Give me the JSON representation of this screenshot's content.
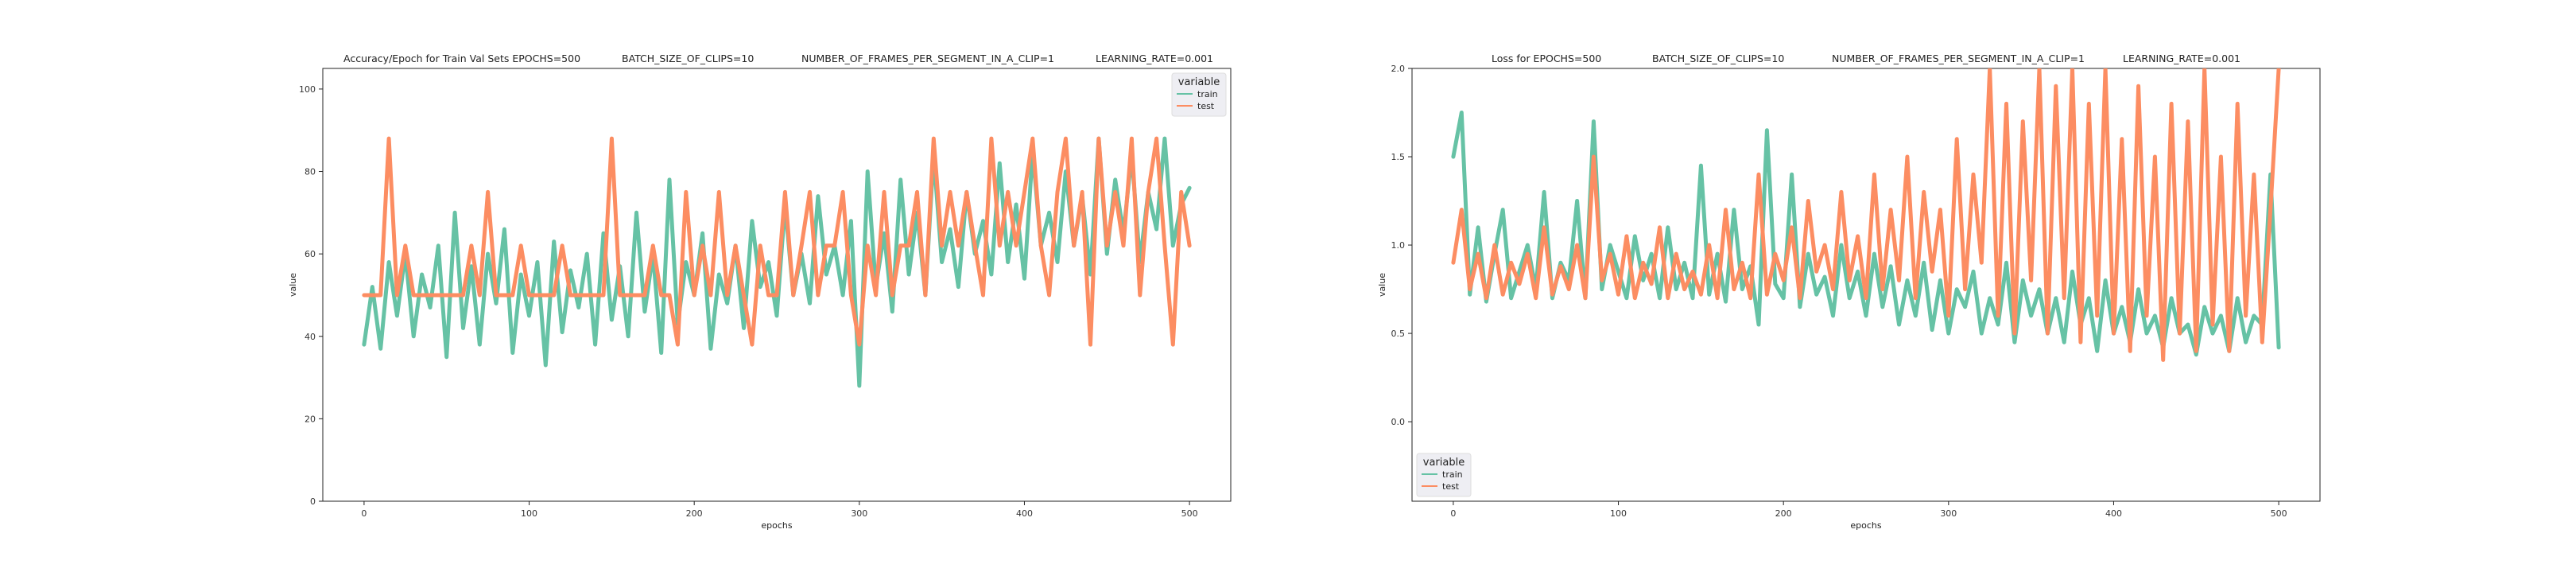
{
  "chart_data": [
    {
      "type": "line",
      "title_parts": [
        "Accuracy/Epoch for Train Val Sets EPOCHS=500",
        "BATCH_SIZE_OF_CLIPS=10",
        "NUMBER_OF_FRAMES_PER_SEGMENT_IN_A_CLIP=1",
        "LEARNING_RATE=0.001"
      ],
      "xlabel": "epochs",
      "ylabel": "value",
      "xlim": [
        -25,
        525
      ],
      "ylim": [
        0,
        105
      ],
      "xticks": [
        0,
        100,
        200,
        300,
        400,
        500
      ],
      "yticks": [
        0,
        20,
        40,
        60,
        80,
        100
      ],
      "legend": {
        "title": "variable",
        "placement": "upper right"
      },
      "series": [
        {
          "name": "train",
          "color": "#66c2a5",
          "x": [
            0,
            5,
            10,
            15,
            20,
            25,
            30,
            35,
            40,
            45,
            50,
            55,
            60,
            65,
            70,
            75,
            80,
            85,
            90,
            95,
            100,
            105,
            110,
            115,
            120,
            125,
            130,
            135,
            140,
            145,
            150,
            155,
            160,
            165,
            170,
            175,
            180,
            185,
            190,
            195,
            200,
            205,
            210,
            215,
            220,
            225,
            230,
            235,
            240,
            245,
            250,
            255,
            260,
            265,
            270,
            275,
            280,
            285,
            290,
            295,
            300,
            305,
            310,
            315,
            320,
            325,
            330,
            335,
            340,
            345,
            350,
            355,
            360,
            365,
            370,
            375,
            380,
            385,
            390,
            395,
            400,
            405,
            410,
            415,
            420,
            425,
            430,
            435,
            440,
            445,
            450,
            455,
            460,
            465,
            470,
            475,
            480,
            485,
            490,
            495,
            500
          ],
          "values": [
            38,
            52,
            37,
            58,
            45,
            60,
            40,
            55,
            47,
            62,
            35,
            70,
            42,
            57,
            38,
            60,
            48,
            66,
            36,
            55,
            45,
            58,
            33,
            63,
            41,
            56,
            47,
            60,
            38,
            65,
            44,
            57,
            40,
            70,
            46,
            60,
            36,
            78,
            43,
            58,
            50,
            65,
            37,
            55,
            48,
            62,
            42,
            68,
            52,
            58,
            45,
            72,
            50,
            60,
            48,
            74,
            55,
            62,
            50,
            68,
            28,
            80,
            52,
            65,
            46,
            78,
            55,
            70,
            50,
            84,
            58,
            66,
            52,
            75,
            60,
            68,
            55,
            82,
            58,
            72,
            54,
            85,
            62,
            70,
            58,
            80,
            62,
            74,
            55,
            88,
            60,
            78,
            65,
            84,
            58,
            75,
            66,
            88,
            62,
            72,
            76
          ]
        },
        {
          "name": "test",
          "color": "#fc8d62",
          "x": [
            0,
            5,
            10,
            15,
            20,
            25,
            30,
            35,
            40,
            45,
            50,
            55,
            60,
            65,
            70,
            75,
            80,
            85,
            90,
            95,
            100,
            105,
            110,
            115,
            120,
            125,
            130,
            135,
            140,
            145,
            150,
            155,
            160,
            165,
            170,
            175,
            180,
            185,
            190,
            195,
            200,
            205,
            210,
            215,
            220,
            225,
            230,
            235,
            240,
            245,
            250,
            255,
            260,
            265,
            270,
            275,
            280,
            285,
            290,
            295,
            300,
            305,
            310,
            315,
            320,
            325,
            330,
            335,
            340,
            345,
            350,
            355,
            360,
            365,
            370,
            375,
            380,
            385,
            390,
            395,
            400,
            405,
            410,
            415,
            420,
            425,
            430,
            435,
            440,
            445,
            450,
            455,
            460,
            465,
            470,
            475,
            480,
            485,
            490,
            495,
            500
          ],
          "values": [
            50,
            50,
            50,
            88,
            50,
            62,
            50,
            50,
            50,
            50,
            50,
            50,
            50,
            62,
            50,
            75,
            50,
            50,
            50,
            62,
            50,
            50,
            50,
            50,
            62,
            50,
            50,
            50,
            50,
            50,
            88,
            50,
            50,
            50,
            50,
            62,
            50,
            50,
            38,
            75,
            50,
            62,
            50,
            75,
            50,
            62,
            50,
            38,
            62,
            50,
            50,
            75,
            50,
            62,
            75,
            50,
            62,
            62,
            75,
            50,
            38,
            62,
            50,
            75,
            50,
            62,
            62,
            75,
            50,
            88,
            62,
            75,
            62,
            75,
            62,
            50,
            88,
            62,
            75,
            62,
            75,
            88,
            62,
            50,
            75,
            88,
            62,
            75,
            38,
            88,
            62,
            75,
            62,
            88,
            50,
            75,
            88,
            62,
            38,
            75,
            62
          ]
        }
      ]
    },
    {
      "type": "line",
      "title_parts": [
        "Loss for  EPOCHS=500",
        "BATCH_SIZE_OF_CLIPS=10",
        "NUMBER_OF_FRAMES_PER_SEGMENT_IN_A_CLIP=1",
        "LEARNING_RATE=0.001"
      ],
      "xlabel": "epochs",
      "ylabel": "value",
      "xlim": [
        -25,
        525
      ],
      "ylim": [
        -0.45,
        2.0
      ],
      "xticks": [
        0,
        100,
        200,
        300,
        400,
        500
      ],
      "yticks": [
        0.0,
        0.5,
        1.0,
        1.5,
        2.0
      ],
      "legend": {
        "title": "variable",
        "placement": "lower left"
      },
      "series": [
        {
          "name": "train",
          "color": "#66c2a5",
          "x": [
            0,
            5,
            10,
            15,
            20,
            25,
            30,
            35,
            40,
            45,
            50,
            55,
            60,
            65,
            70,
            75,
            80,
            85,
            90,
            95,
            100,
            105,
            110,
            115,
            120,
            125,
            130,
            135,
            140,
            145,
            150,
            155,
            160,
            165,
            170,
            175,
            180,
            185,
            190,
            195,
            200,
            205,
            210,
            215,
            220,
            225,
            230,
            235,
            240,
            245,
            250,
            255,
            260,
            265,
            270,
            275,
            280,
            285,
            290,
            295,
            300,
            305,
            310,
            315,
            320,
            325,
            330,
            335,
            340,
            345,
            350,
            355,
            360,
            365,
            370,
            375,
            380,
            385,
            390,
            395,
            400,
            405,
            410,
            415,
            420,
            425,
            430,
            435,
            440,
            445,
            450,
            455,
            460,
            465,
            470,
            475,
            480,
            485,
            490,
            495,
            500
          ],
          "values": [
            1.5,
            1.75,
            0.72,
            1.1,
            0.68,
            0.95,
            1.2,
            0.7,
            0.85,
            1.0,
            0.75,
            1.3,
            0.7,
            0.9,
            0.8,
            1.25,
            0.7,
            1.7,
            0.75,
            1.0,
            0.85,
            0.7,
            1.05,
            0.8,
            0.95,
            0.7,
            1.1,
            0.75,
            0.9,
            0.7,
            1.45,
            0.72,
            0.95,
            0.68,
            1.2,
            0.75,
            0.88,
            0.55,
            1.65,
            0.78,
            0.7,
            1.4,
            0.65,
            0.95,
            0.72,
            0.82,
            0.6,
            1.0,
            0.7,
            0.85,
            0.6,
            0.95,
            0.65,
            0.88,
            0.55,
            0.8,
            0.6,
            0.9,
            0.52,
            0.8,
            0.5,
            0.75,
            0.65,
            0.85,
            0.5,
            0.7,
            0.55,
            0.9,
            0.45,
            0.8,
            0.6,
            0.75,
            0.5,
            0.7,
            0.45,
            0.85,
            0.55,
            0.7,
            0.4,
            0.8,
            0.5,
            0.65,
            0.45,
            0.75,
            0.5,
            0.6,
            0.42,
            0.7,
            0.5,
            0.55,
            0.38,
            0.65,
            0.5,
            0.6,
            0.4,
            0.7,
            0.45,
            0.6,
            0.55,
            1.4,
            0.42
          ]
        },
        {
          "name": "test",
          "color": "#fc8d62",
          "x": [
            0,
            5,
            10,
            15,
            20,
            25,
            30,
            35,
            40,
            45,
            50,
            55,
            60,
            65,
            70,
            75,
            80,
            85,
            90,
            95,
            100,
            105,
            110,
            115,
            120,
            125,
            130,
            135,
            140,
            145,
            150,
            155,
            160,
            165,
            170,
            175,
            180,
            185,
            190,
            195,
            200,
            205,
            210,
            215,
            220,
            225,
            230,
            235,
            240,
            245,
            250,
            255,
            260,
            265,
            270,
            275,
            280,
            285,
            290,
            295,
            300,
            305,
            310,
            315,
            320,
            325,
            330,
            335,
            340,
            345,
            350,
            355,
            360,
            365,
            370,
            375,
            380,
            385,
            390,
            395,
            400,
            405,
            410,
            415,
            420,
            425,
            430,
            435,
            440,
            445,
            450,
            455,
            460,
            465,
            470,
            475,
            480,
            485,
            490,
            495,
            500
          ],
          "values": [
            0.9,
            1.2,
            0.75,
            0.95,
            0.7,
            1.0,
            0.72,
            0.9,
            0.78,
            0.95,
            0.7,
            1.1,
            0.72,
            0.88,
            0.75,
            1.0,
            0.7,
            1.5,
            0.8,
            0.95,
            0.72,
            1.05,
            0.7,
            0.9,
            0.78,
            1.1,
            0.7,
            0.95,
            0.75,
            0.85,
            0.72,
            1.0,
            0.7,
            1.2,
            0.75,
            0.9,
            0.7,
            1.4,
            0.72,
            0.95,
            0.8,
            1.1,
            0.7,
            1.25,
            0.85,
            1.0,
            0.75,
            1.3,
            0.8,
            1.05,
            0.7,
            1.4,
            0.75,
            1.2,
            0.8,
            1.5,
            0.7,
            1.3,
            0.85,
            1.2,
            0.6,
            1.6,
            0.75,
            1.4,
            0.9,
            2.0,
            0.6,
            1.8,
            0.5,
            1.7,
            0.8,
            2.0,
            0.5,
            1.9,
            0.7,
            2.0,
            0.45,
            1.8,
            0.6,
            2.0,
            0.5,
            1.6,
            0.4,
            1.9,
            0.6,
            1.5,
            0.35,
            1.8,
            0.5,
            1.7,
            0.4,
            2.0,
            0.55,
            1.5,
            0.4,
            1.8,
            0.6,
            1.4,
            0.45,
            1.2,
            2.0
          ]
        }
      ]
    }
  ]
}
